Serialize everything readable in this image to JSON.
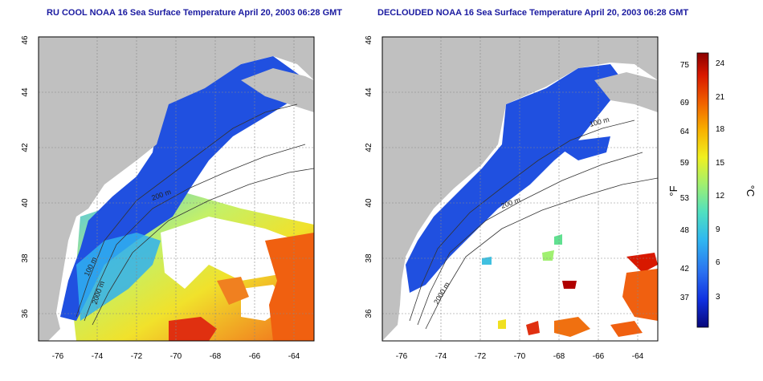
{
  "panels": [
    {
      "id": "left",
      "title": "RU COOL NOAA 16 Sea Surface Temperature April 20, 2003 06:28 GMT",
      "contour_labels": [
        "100 m",
        "200 m",
        "2000 m"
      ]
    },
    {
      "id": "right",
      "title": "DECLOUDED NOAA 16 Sea Surface Temperature April 20, 2003 06:28 GMT",
      "contour_labels": [
        "100 m",
        "200 m",
        "2000 m"
      ]
    }
  ],
  "axes": {
    "lon_ticks": [
      "-76",
      "-74",
      "-72",
      "-70",
      "-68",
      "-66",
      "-64"
    ],
    "lat_ticks": [
      "36",
      "38",
      "40",
      "42",
      "44",
      "46"
    ],
    "lon_range": [
      -77,
      -63
    ],
    "lat_range": [
      35,
      46
    ]
  },
  "colorbar": {
    "fahrenheit_ticks": [
      "75",
      "69",
      "64",
      "59",
      "53",
      "48",
      "42",
      "37"
    ],
    "celsius_ticks": [
      "24",
      "21",
      "18",
      "15",
      "12",
      "9",
      "6",
      "3"
    ],
    "fahrenheit_label": "°F",
    "celsius_label": "°C",
    "colors": [
      "#08087a",
      "#1030e0",
      "#2a70f0",
      "#30b8f0",
      "#50e0c0",
      "#a0f070",
      "#f0f020",
      "#f8b000",
      "#f06000",
      "#d81800",
      "#8a0000"
    ]
  },
  "colors": {
    "land": "#c0c0c0",
    "water_cloud": "#ffffff",
    "cold_water": "#2050e0",
    "frame": "#000000"
  }
}
